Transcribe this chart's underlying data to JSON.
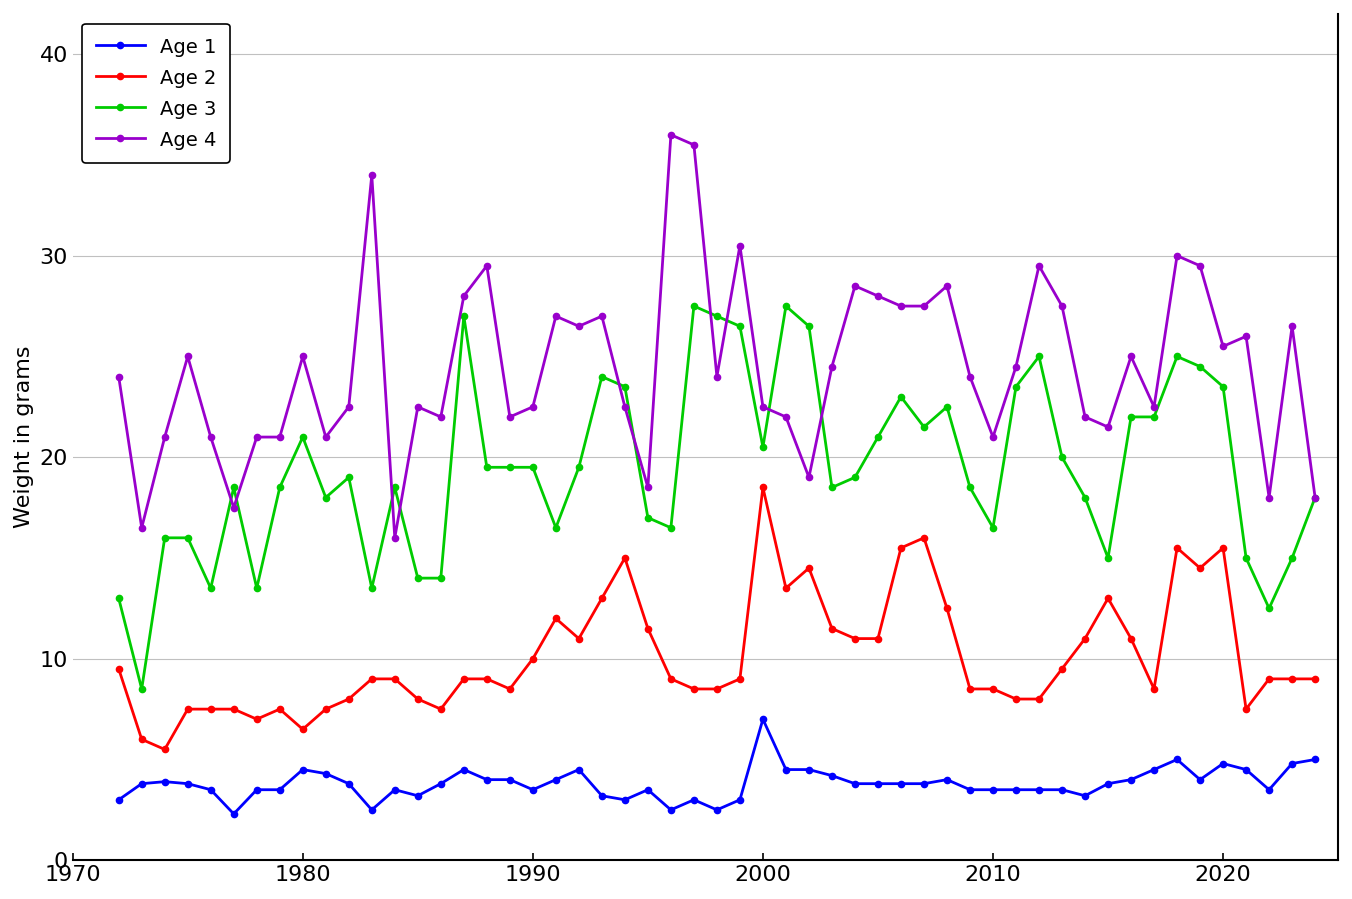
{
  "ylabel": "Weight in grams",
  "xlabel": "",
  "background_color": "#ffffff",
  "plot_bg_color": "#ffffff",
  "xlim": [
    1970,
    2025
  ],
  "ylim": [
    0,
    42
  ],
  "yticks": [
    0,
    10,
    20,
    30,
    40
  ],
  "xticks": [
    1970,
    1980,
    1990,
    2000,
    2010,
    2020
  ],
  "series": {
    "Age 1": {
      "color": "#0000ff",
      "years": [
        1972,
        1973,
        1974,
        1975,
        1976,
        1977,
        1978,
        1979,
        1980,
        1981,
        1982,
        1983,
        1984,
        1985,
        1986,
        1987,
        1988,
        1989,
        1990,
        1991,
        1992,
        1993,
        1994,
        1995,
        1996,
        1997,
        1998,
        1999,
        2000,
        2001,
        2002,
        2003,
        2004,
        2005,
        2006,
        2007,
        2008,
        2009,
        2010,
        2011,
        2012,
        2013,
        2014,
        2015,
        2016,
        2017,
        2018,
        2019,
        2020,
        2021,
        2022,
        2023,
        2024
      ],
      "values": [
        3.0,
        3.8,
        3.9,
        3.8,
        3.5,
        2.3,
        3.5,
        3.5,
        4.5,
        4.3,
        3.8,
        2.5,
        3.5,
        3.2,
        3.8,
        4.5,
        4.0,
        4.0,
        3.5,
        4.0,
        4.5,
        3.2,
        3.0,
        3.5,
        2.5,
        3.0,
        2.5,
        3.0,
        7.0,
        4.5,
        4.5,
        4.2,
        3.8,
        3.8,
        3.8,
        3.8,
        4.0,
        3.5,
        3.5,
        3.5,
        3.5,
        3.5,
        3.2,
        3.8,
        4.0,
        4.5,
        5.0,
        4.0,
        4.8,
        4.5,
        3.5,
        4.8,
        5.0
      ]
    },
    "Age 2": {
      "color": "#ff0000",
      "years": [
        1972,
        1973,
        1974,
        1975,
        1976,
        1977,
        1978,
        1979,
        1980,
        1981,
        1982,
        1983,
        1984,
        1985,
        1986,
        1987,
        1988,
        1989,
        1990,
        1991,
        1992,
        1993,
        1994,
        1995,
        1996,
        1997,
        1998,
        1999,
        2000,
        2001,
        2002,
        2003,
        2004,
        2005,
        2006,
        2007,
        2008,
        2009,
        2010,
        2011,
        2012,
        2013,
        2014,
        2015,
        2016,
        2017,
        2018,
        2019,
        2020,
        2021,
        2022,
        2023,
        2024
      ],
      "values": [
        9.5,
        6.0,
        5.5,
        7.5,
        7.5,
        7.5,
        7.0,
        7.5,
        6.5,
        7.5,
        8.0,
        9.0,
        9.0,
        8.0,
        7.5,
        9.0,
        9.0,
        8.5,
        10.0,
        12.0,
        11.0,
        13.0,
        15.0,
        11.5,
        9.0,
        8.5,
        8.5,
        9.0,
        18.5,
        13.5,
        14.5,
        11.5,
        11.0,
        11.0,
        15.5,
        16.0,
        12.5,
        8.5,
        8.5,
        8.0,
        8.0,
        9.5,
        11.0,
        13.0,
        11.0,
        8.5,
        15.5,
        14.5,
        15.5,
        7.5,
        9.0,
        9.0,
        9.0
      ]
    },
    "Age 3": {
      "color": "#00cc00",
      "years": [
        1972,
        1973,
        1974,
        1975,
        1976,
        1977,
        1978,
        1979,
        1980,
        1981,
        1982,
        1983,
        1984,
        1985,
        1986,
        1987,
        1988,
        1989,
        1990,
        1991,
        1992,
        1993,
        1994,
        1995,
        1996,
        1997,
        1998,
        1999,
        2000,
        2001,
        2002,
        2003,
        2004,
        2005,
        2006,
        2007,
        2008,
        2009,
        2010,
        2011,
        2012,
        2013,
        2014,
        2015,
        2016,
        2017,
        2018,
        2019,
        2020,
        2021,
        2022,
        2023,
        2024
      ],
      "values": [
        13.0,
        8.5,
        16.0,
        16.0,
        13.5,
        18.5,
        13.5,
        18.5,
        21.0,
        18.0,
        19.0,
        13.5,
        18.5,
        14.0,
        14.0,
        27.0,
        19.5,
        19.5,
        19.5,
        16.5,
        19.5,
        24.0,
        23.5,
        17.0,
        16.5,
        27.5,
        27.0,
        26.5,
        20.5,
        27.5,
        26.5,
        18.5,
        19.0,
        21.0,
        23.0,
        21.5,
        22.5,
        18.5,
        16.5,
        23.5,
        25.0,
        20.0,
        18.0,
        15.0,
        22.0,
        22.0,
        25.0,
        24.5,
        23.5,
        15.0,
        12.5,
        15.0,
        18.0
      ]
    },
    "Age 4": {
      "color": "#9900cc",
      "years": [
        1972,
        1973,
        1974,
        1975,
        1976,
        1977,
        1978,
        1979,
        1980,
        1981,
        1982,
        1983,
        1984,
        1985,
        1986,
        1987,
        1988,
        1989,
        1990,
        1991,
        1992,
        1993,
        1994,
        1995,
        1996,
        1997,
        1998,
        1999,
        2000,
        2001,
        2002,
        2003,
        2004,
        2005,
        2006,
        2007,
        2008,
        2009,
        2010,
        2011,
        2012,
        2013,
        2014,
        2015,
        2016,
        2017,
        2018,
        2019,
        2020,
        2021,
        2022,
        2023,
        2024
      ],
      "values": [
        24.0,
        16.5,
        21.0,
        25.0,
        21.0,
        17.5,
        21.0,
        21.0,
        25.0,
        21.0,
        22.5,
        34.0,
        16.0,
        22.5,
        22.0,
        28.0,
        29.5,
        22.0,
        22.5,
        27.0,
        26.5,
        27.0,
        22.5,
        18.5,
        36.0,
        35.5,
        24.0,
        30.5,
        22.5,
        22.0,
        19.0,
        24.5,
        28.5,
        28.0,
        27.5,
        27.5,
        28.5,
        24.0,
        21.0,
        24.5,
        29.5,
        27.5,
        22.0,
        21.5,
        25.0,
        22.5,
        30.0,
        29.5,
        25.5,
        26.0,
        18.0,
        26.5,
        18.0
      ]
    }
  }
}
